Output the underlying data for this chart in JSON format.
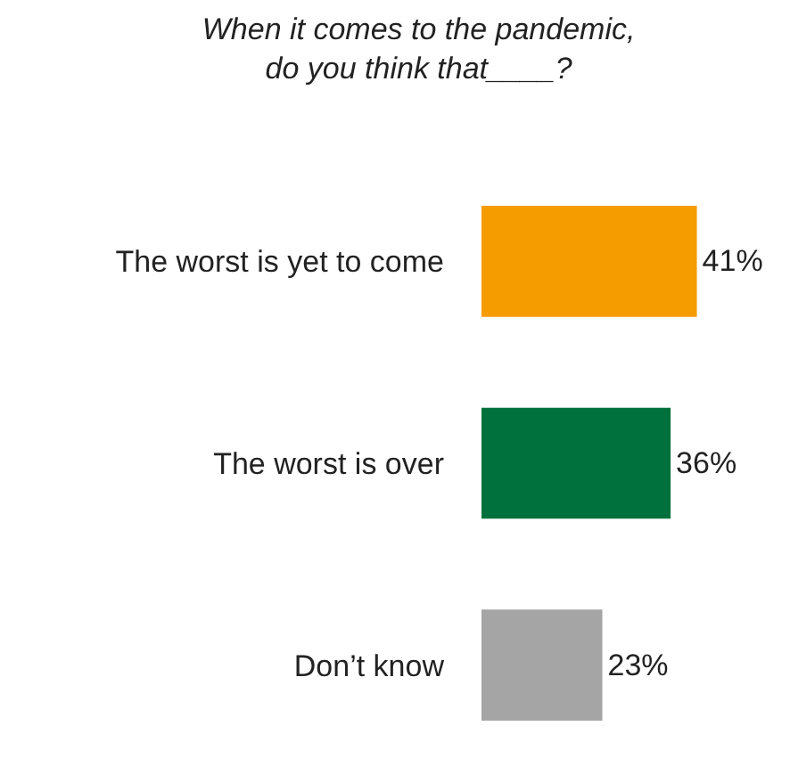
{
  "chart_data": {
    "type": "bar",
    "orientation": "horizontal",
    "title": "When it comes to the pandemic,\ndo you think that____?",
    "categories": [
      "The worst is yet to come",
      "The worst is over",
      "Don’t know"
    ],
    "values": [
      41,
      36,
      23
    ],
    "colors": [
      "#f59c00",
      "#00703c",
      "#a5a5a5"
    ],
    "value_labels": [
      "41%",
      "36%",
      "23%"
    ]
  }
}
